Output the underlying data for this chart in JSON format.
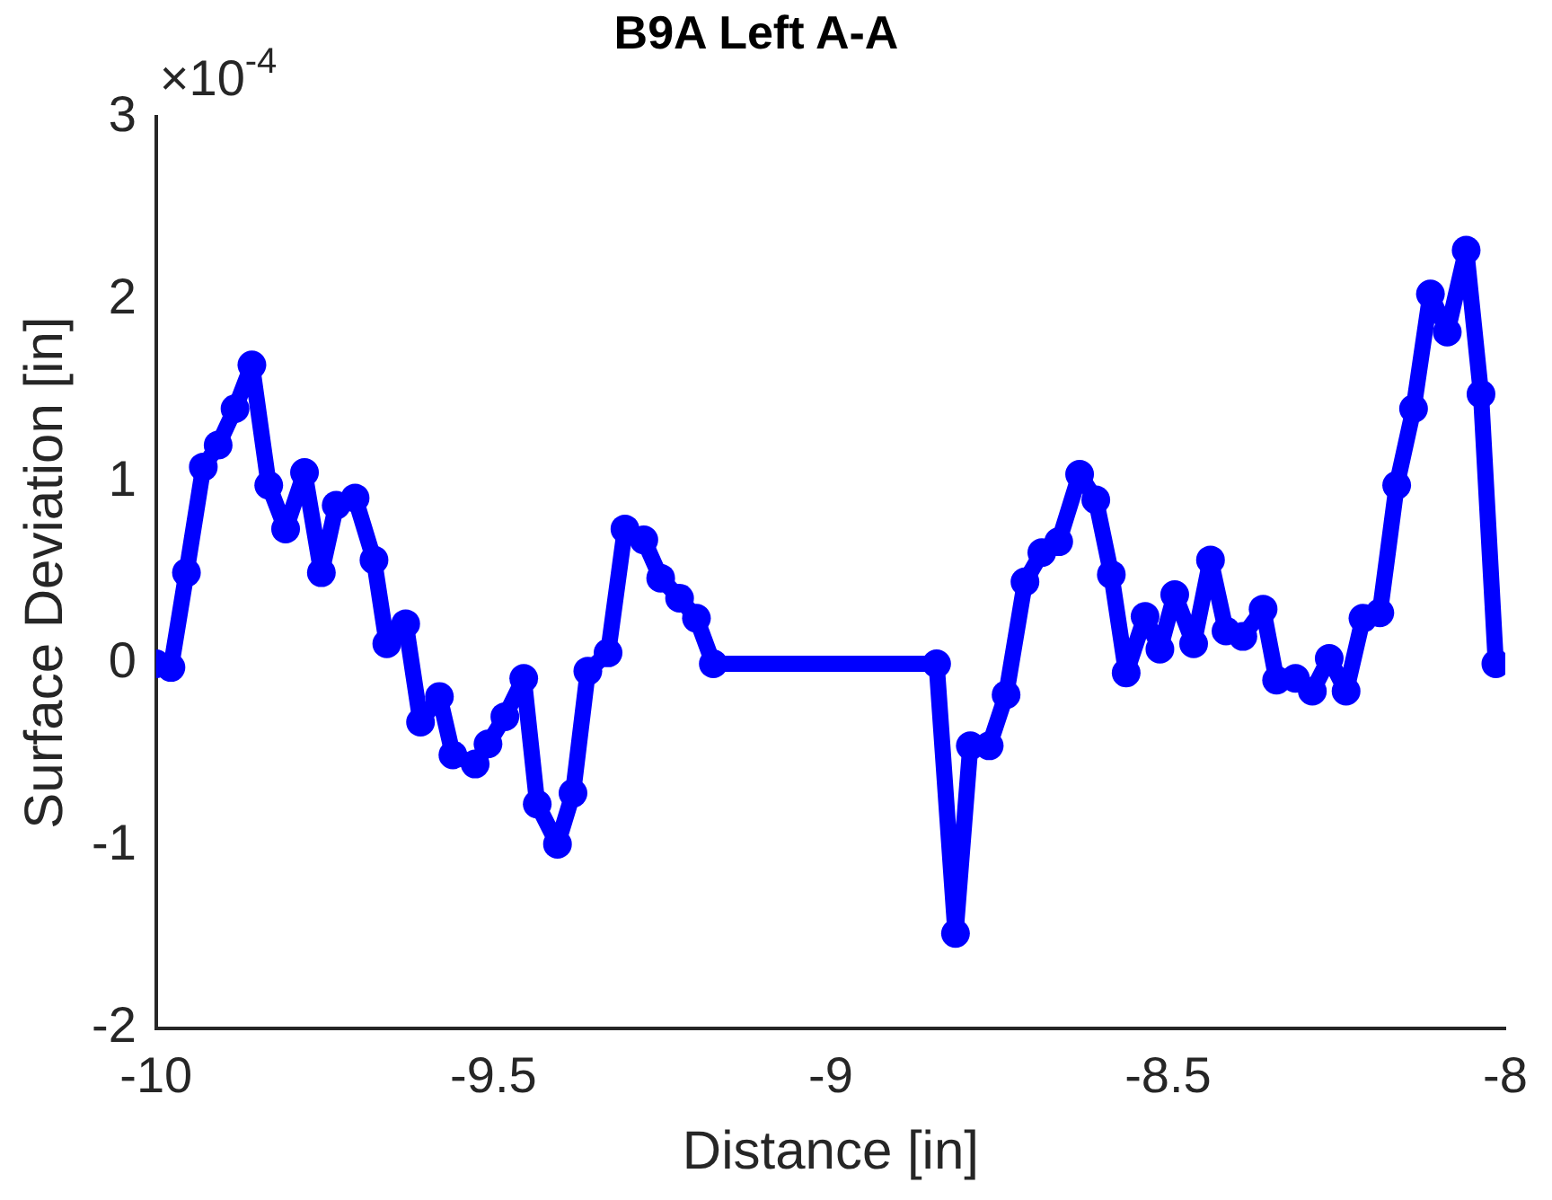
{
  "chart_data": {
    "type": "line",
    "title": "B9A Left A-A",
    "xlabel": "Distance [in]",
    "ylabel": "Surface Deviation [in]",
    "annotations": [
      "×10$^{-4}$"
    ],
    "x": [
      -10,
      -9.978,
      -9.955,
      -9.93,
      -9.908,
      -9.883,
      -9.858,
      -9.833,
      -9.808,
      -9.78,
      -9.755,
      -9.733,
      -9.705,
      -9.677,
      -9.658,
      -9.63,
      -9.608,
      -9.58,
      -9.56,
      -9.527,
      -9.508,
      -9.483,
      -9.455,
      -9.435,
      -9.405,
      -9.382,
      -9.36,
      -9.33,
      -9.305,
      -9.277,
      -9.252,
      -9.224,
      -9.199,
      -9.174,
      -8.843,
      -8.815,
      -8.793,
      -8.765,
      -8.74,
      -8.712,
      -8.687,
      -8.662,
      -8.631,
      -8.607,
      -8.584,
      -8.562,
      -8.534,
      -8.512,
      -8.49,
      -8.462,
      -8.437,
      -8.414,
      -8.389,
      -8.359,
      -8.339,
      -8.311,
      -8.286,
      -8.261,
      -8.236,
      -8.211,
      -8.186,
      -8.161,
      -8.136,
      -8.111,
      -8.086,
      -8.058,
      -8.036,
      -8.014
    ],
    "series": [
      {
        "color": "#0000ff",
        "values": [
          0,
          -0.02,
          0.5,
          1.08,
          1.2,
          1.4,
          1.64,
          0.98,
          0.74,
          1.05,
          0.5,
          0.87,
          0.91,
          0.57,
          0.11,
          0.22,
          -0.32,
          -0.18,
          -0.5,
          -0.55,
          -0.44,
          -0.29,
          -0.08,
          -0.77,
          -0.99,
          -0.71,
          -0.04,
          0.06,
          0.74,
          0.68,
          0.47,
          0.36,
          0.25,
          0,
          0,
          -1.48,
          -0.45,
          -0.45,
          -0.17,
          0.45,
          0.61,
          0.67,
          1.04,
          0.9,
          0.49,
          -0.05,
          0.26,
          0.08,
          0.38,
          0.11,
          0.57,
          0.18,
          0.15,
          0.3,
          -0.09,
          -0.08,
          -0.15,
          0.03,
          -0.15,
          0.25,
          0.28,
          0.98,
          1.4,
          2.03,
          1.82,
          2.27,
          1.48,
          0
        ]
      }
    ],
    "xlim": [
      -10,
      -8
    ],
    "xticks": [
      -10,
      -9.5,
      -9,
      -8.5,
      -8
    ],
    "ylim": [
      -2,
      3
    ],
    "yticks": [
      -2,
      -1,
      0,
      1,
      2,
      3
    ],
    "grid": false,
    "legend": false,
    "marker": "circle",
    "line_style": "solid"
  }
}
